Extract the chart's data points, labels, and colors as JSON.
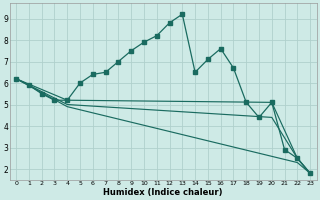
{
  "background_color": "#ceeae6",
  "grid_color": "#b0d0cc",
  "line_color": "#1a6b60",
  "xlabel": "Humidex (Indice chaleur)",
  "xlim": [
    -0.5,
    23.5
  ],
  "ylim": [
    1.5,
    9.7
  ],
  "yticks": [
    2,
    3,
    4,
    5,
    6,
    7,
    8,
    9
  ],
  "xticks": [
    0,
    1,
    2,
    3,
    4,
    5,
    6,
    7,
    8,
    9,
    10,
    11,
    12,
    13,
    14,
    15,
    16,
    17,
    18,
    19,
    20,
    21,
    22,
    23
  ],
  "lines": [
    {
      "x": [
        0,
        1,
        2,
        3,
        4,
        5,
        6,
        7,
        8,
        9,
        10,
        11,
        12,
        13,
        14,
        15,
        16,
        17,
        18,
        19,
        20,
        21,
        22,
        23
      ],
      "y": [
        6.2,
        5.9,
        5.5,
        5.2,
        5.2,
        6.0,
        6.4,
        6.5,
        7.0,
        7.5,
        7.9,
        8.2,
        8.8,
        9.2,
        6.5,
        7.1,
        7.6,
        6.7,
        5.1,
        4.4,
        5.1,
        2.9,
        2.5,
        1.8
      ],
      "has_markers": true
    },
    {
      "x": [
        0,
        4,
        20,
        22,
        23
      ],
      "y": [
        6.2,
        5.2,
        5.1,
        2.5,
        1.8
      ],
      "has_markers": false
    },
    {
      "x": [
        0,
        4,
        20,
        22,
        23
      ],
      "y": [
        6.2,
        5.0,
        4.4,
        2.5,
        1.8
      ],
      "has_markers": false
    },
    {
      "x": [
        0,
        4,
        22,
        23
      ],
      "y": [
        6.2,
        4.9,
        2.3,
        1.8
      ],
      "has_markers": false
    }
  ]
}
